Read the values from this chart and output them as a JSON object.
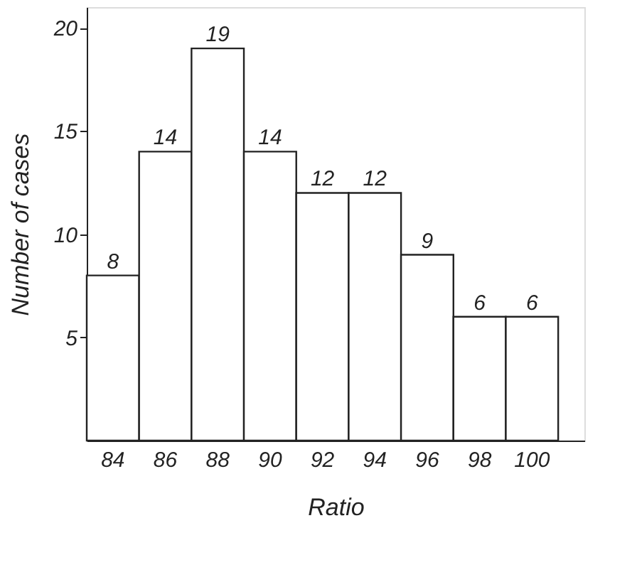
{
  "chart_data": {
    "type": "bar",
    "xlabel": "Ratio",
    "ylabel": "Number of cases",
    "categories": [
      "84",
      "86",
      "88",
      "90",
      "92",
      "94",
      "96",
      "98",
      "100"
    ],
    "values": [
      8,
      14,
      19,
      14,
      12,
      12,
      9,
      6,
      6
    ],
    "color": "#ffffff",
    "data_labels": true,
    "ylim": [
      0,
      21
    ],
    "yticks": [
      5,
      10,
      15,
      20
    ],
    "grid": false
  }
}
